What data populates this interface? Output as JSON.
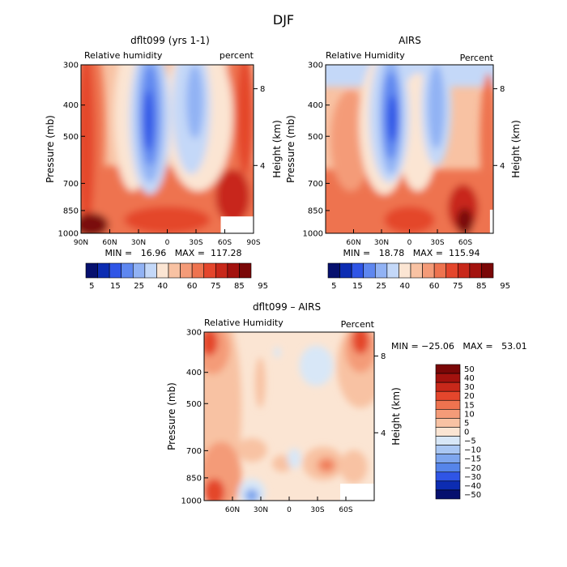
{
  "chart_data": {
    "title": "DJF",
    "panels": [
      {
        "id": "model",
        "type": "heatmap",
        "title": "dflt099 (yrs 1-1)",
        "left_label": "Relative humidity",
        "right_label": "percent",
        "ylabel": "Pressure (mb)",
        "y2label": "Height (km)",
        "y_ticks": [
          "300",
          "400",
          "500",
          "700",
          "850",
          "1000"
        ],
        "y2_ticks": [
          "8",
          "4"
        ],
        "x_ticks": [
          "90N",
          "60N",
          "30N",
          "0",
          "30S",
          "60S",
          "90S"
        ],
        "stats": "MIN =   16.96   MAX =  117.28",
        "colorbar_labels": [
          "5",
          "15",
          "25",
          "40",
          "60",
          "75",
          "85",
          "95"
        ]
      },
      {
        "id": "obs",
        "type": "heatmap",
        "title": "AIRS",
        "left_label": "Relative Humidity",
        "right_label": "Percent",
        "ylabel": "Pressure (mb)",
        "y2label": "Height (km)",
        "y_ticks": [
          "300",
          "400",
          "500",
          "700",
          "850",
          "1000"
        ],
        "y2_ticks": [
          "8",
          "4"
        ],
        "x_ticks": [
          "60N",
          "30N",
          "0",
          "30S",
          "60S"
        ],
        "stats": "MIN =   18.78   MAX =  115.94",
        "colorbar_labels": [
          "5",
          "15",
          "25",
          "40",
          "60",
          "75",
          "85",
          "95"
        ]
      },
      {
        "id": "diff",
        "type": "heatmap",
        "title": "dflt099 – AIRS",
        "left_label": "Relative Humidity",
        "right_label": "Percent",
        "ylabel": "Pressure (mb)",
        "y2label": "Height (km)",
        "y_ticks": [
          "300",
          "400",
          "500",
          "700",
          "850",
          "1000"
        ],
        "y2_ticks": [
          "8",
          "4"
        ],
        "x_ticks": [
          "60N",
          "30N",
          "0",
          "30S",
          "60S"
        ],
        "stats": "MIN = −25.06   MAX =   53.01",
        "colorbar_labels": [
          "50",
          "40",
          "30",
          "20",
          "15",
          "10",
          "5",
          "0",
          "−5",
          "−10",
          "−15",
          "−20",
          "−30",
          "−40",
          "−50"
        ]
      }
    ]
  },
  "colors": {
    "rh_scale": [
      "#06106e",
      "#0c2cb2",
      "#2f55e6",
      "#5e87f0",
      "#91b2f4",
      "#c4d8f8",
      "#fbe5d3",
      "#f8c2a3",
      "#f49b78",
      "#ee734f",
      "#e4462c",
      "#c8281a",
      "#a3120e",
      "#7a0707"
    ],
    "diff_scale": [
      "#7a0707",
      "#a3120e",
      "#c8281a",
      "#e4462c",
      "#ee734f",
      "#f49b78",
      "#f8c2a3",
      "#fbe5d3",
      "#d8e7f7",
      "#aac7f3",
      "#7ea6ee",
      "#5685ea",
      "#2f55e6",
      "#0c2cb2",
      "#06106e"
    ]
  }
}
